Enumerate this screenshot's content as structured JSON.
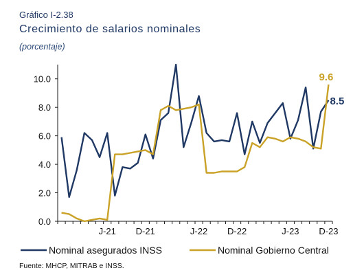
{
  "header": {
    "label": "Gráfico I-2.38",
    "title": "Crecimiento de salarios nominales",
    "subtitle": "(porcentaje)"
  },
  "source": "Fuente: MHCP, MITRAB e INSS.",
  "colors": {
    "navy": "#1f3864",
    "gold": "#c9a227",
    "axis": "#1a1a1a"
  },
  "chart_data": {
    "type": "line",
    "ylim": [
      0,
      11
    ],
    "yticks": [
      "0.0",
      "2.0",
      "4.0",
      "6.0",
      "8.0",
      "10.0"
    ],
    "x_tick_labels": [
      {
        "label": "J-21",
        "index": 6
      },
      {
        "label": "D-21",
        "index": 11
      },
      {
        "label": "J-22",
        "index": 18
      },
      {
        "label": "D-22",
        "index": 23
      },
      {
        "label": "J-23",
        "index": 30
      },
      {
        "label": "D-23",
        "index": 35
      }
    ],
    "n_points": 36,
    "grid": false,
    "legend_position": "bottom",
    "series": [
      {
        "name": "Nominal asegurados INSS",
        "color": "#1f3864",
        "values": [
          5.9,
          1.7,
          3.6,
          6.2,
          5.7,
          4.5,
          6.2,
          1.8,
          3.8,
          3.7,
          4.1,
          6.1,
          4.4,
          7.1,
          7.6,
          11.0,
          5.2,
          6.9,
          8.8,
          6.2,
          5.6,
          5.7,
          5.6,
          7.6,
          4.7,
          7.0,
          5.5,
          6.9,
          7.6,
          8.3,
          5.8,
          7.1,
          9.4,
          5.1,
          7.7,
          8.5
        ],
        "end_label": "8.5"
      },
      {
        "name": "Nominal Gobierno Central",
        "color": "#c9a227",
        "values": [
          0.6,
          0.5,
          0.2,
          0.0,
          0.1,
          0.2,
          0.1,
          4.7,
          4.7,
          4.8,
          4.9,
          5.0,
          4.7,
          7.8,
          8.1,
          7.8,
          7.9,
          8.0,
          8.2,
          3.4,
          3.4,
          3.5,
          3.5,
          3.5,
          3.8,
          5.5,
          5.2,
          5.9,
          5.8,
          5.6,
          5.9,
          5.8,
          5.6,
          5.2,
          5.1,
          9.6
        ],
        "end_label": "9.6"
      }
    ]
  }
}
